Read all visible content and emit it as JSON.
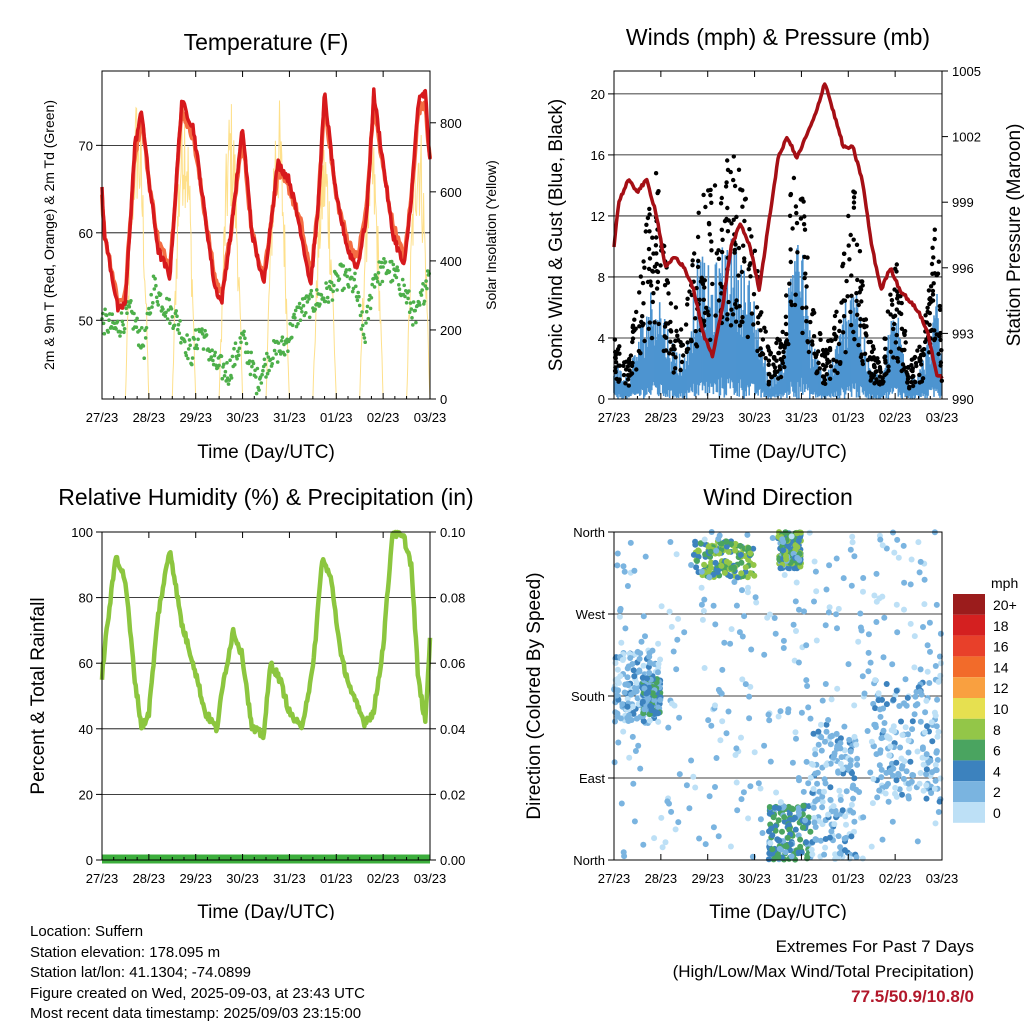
{
  "time_ticks": [
    "27/23",
    "28/23",
    "29/23",
    "30/23",
    "31/23",
    "01/23",
    "02/23",
    "03/23"
  ],
  "xlabel": "Time (Day/UTC)",
  "colors": {
    "t2m": "#d7191c",
    "t9m": "#f46d43",
    "td": "#4daf4a",
    "solar": "#fee08b",
    "wind": "#4d94d0",
    "gust": "#000000",
    "pressure": "#a50f15",
    "rh": "#8cc63f",
    "precip": "#3cae3c"
  },
  "chart_data": [
    {
      "type": "line",
      "title": "Temperature (F)",
      "xlabel": "Time (Day/UTC)",
      "ylabel": "2m & 9m T (Red, Orange) & 2m Td (Green)",
      "ylabel_right": "Solar Insolation (Yellow)",
      "ylim": [
        41,
        78.5
      ],
      "yticks": [
        50,
        60,
        70
      ],
      "ylim_right": [
        0,
        950
      ],
      "yticks_right": [
        0,
        200,
        400,
        600,
        800
      ],
      "x_range_days": [
        0,
        7
      ],
      "grid": "horizontal",
      "series": [
        {
          "name": "2m T",
          "x": [
            0,
            0.05,
            0.35,
            0.5,
            0.7,
            0.85,
            1.0,
            1.2,
            1.45,
            1.7,
            1.95,
            2.2,
            2.4,
            2.55,
            2.75,
            3.0,
            3.2,
            3.45,
            3.6,
            3.75,
            4.0,
            4.25,
            4.45,
            4.6,
            4.75,
            5.0,
            5.25,
            5.45,
            5.65,
            5.8,
            5.95,
            6.2,
            6.45,
            6.6,
            6.75,
            6.9,
            7.0
          ],
          "y": [
            65,
            60,
            51,
            52,
            70,
            74,
            66,
            58,
            55,
            75,
            72,
            62,
            54,
            52,
            60,
            72,
            60,
            54,
            61,
            68,
            66,
            60,
            54,
            62,
            76,
            64,
            58,
            56,
            62,
            76,
            70,
            60,
            56,
            64,
            75,
            76,
            68
          ]
        },
        {
          "name": "9m T",
          "x": [
            0,
            0.05,
            0.35,
            0.5,
            0.7,
            0.85,
            1.0,
            1.2,
            1.45,
            1.7,
            1.95,
            2.2,
            2.4,
            2.55,
            2.75,
            3.0,
            3.2,
            3.45,
            3.6,
            3.75,
            4.0,
            4.25,
            4.45,
            4.6,
            4.75,
            5.0,
            5.25,
            5.45,
            5.65,
            5.8,
            5.95,
            6.2,
            6.45,
            6.6,
            6.75,
            6.9,
            7.0
          ],
          "y": [
            64,
            60,
            52,
            53,
            69,
            73,
            66,
            59,
            56,
            74,
            71,
            62,
            55,
            53,
            60,
            71,
            60,
            55,
            61,
            67,
            65,
            61,
            55,
            62,
            75,
            64,
            59,
            57,
            63,
            75,
            69,
            61,
            57,
            64,
            74,
            75,
            68
          ]
        },
        {
          "name": "2m Td",
          "x": [
            0,
            0.3,
            0.6,
            0.9,
            1.1,
            1.3,
            1.6,
            1.9,
            2.1,
            2.4,
            2.7,
            3.0,
            3.3,
            3.6,
            3.9,
            4.2,
            4.5,
            4.8,
            5.1,
            5.4,
            5.6,
            5.8,
            6.1,
            6.4,
            6.7,
            6.9,
            7.0
          ],
          "y": [
            50,
            49,
            51,
            47,
            54,
            52,
            50,
            46,
            49,
            45,
            44,
            48,
            43,
            46,
            47,
            51,
            52,
            53,
            55,
            54,
            48,
            55,
            56,
            54,
            50,
            54,
            57
          ]
        },
        {
          "name": "Solar",
          "axis": "right",
          "x": [
            0,
            0.5,
            0.75,
            1.0,
            1.5,
            1.75,
            2.0,
            2.5,
            2.75,
            3.0,
            3.5,
            3.75,
            4.0,
            4.5,
            4.75,
            5.0,
            5.5,
            5.75,
            6.0,
            6.5,
            6.75,
            7.0
          ],
          "y": [
            0,
            0,
            900,
            0,
            0,
            930,
            0,
            0,
            880,
            0,
            0,
            900,
            0,
            0,
            780,
            0,
            0,
            800,
            0,
            0,
            860,
            0
          ]
        }
      ]
    },
    {
      "type": "line",
      "title": "Winds (mph) & Pressure (mb)",
      "xlabel": "Time (Day/UTC)",
      "ylabel": "Sonic Wind & Gust (Blue, Black)",
      "ylabel_right": "Station Pressure (Maroon)",
      "ylim": [
        0,
        21.5
      ],
      "yticks": [
        0,
        4,
        8,
        12,
        16,
        20
      ],
      "ylim_right": [
        990,
        1005
      ],
      "yticks_right": [
        990,
        993,
        996,
        999,
        1002,
        1005
      ],
      "x_range_days": [
        0,
        7
      ],
      "grid": "horizontal",
      "series": [
        {
          "name": "Sonic Wind",
          "x": [
            0,
            0.3,
            0.6,
            0.9,
            1.2,
            1.5,
            1.8,
            2.1,
            2.4,
            2.7,
            3.0,
            3.3,
            3.6,
            3.9,
            4.2,
            4.5,
            4.8,
            5.1,
            5.4,
            5.7,
            6.0,
            6.3,
            6.6,
            6.9,
            7.0
          ],
          "y": [
            2,
            1,
            4,
            6,
            3,
            2,
            7,
            6,
            8,
            7,
            5,
            1,
            2,
            10,
            3,
            1,
            3,
            7,
            2,
            1,
            5,
            1,
            2,
            5,
            2
          ]
        },
        {
          "name": "Gust",
          "x": [
            0,
            0.3,
            0.6,
            0.9,
            1.2,
            1.5,
            1.8,
            2.1,
            2.4,
            2.7,
            3.0,
            3.3,
            3.6,
            3.9,
            4.2,
            4.5,
            4.8,
            5.1,
            5.4,
            5.7,
            6.0,
            6.3,
            6.6,
            6.9,
            7.0
          ],
          "y": [
            4,
            2,
            9,
            14,
            6,
            5,
            12,
            13,
            15,
            14,
            9,
            3,
            4,
            19,
            6,
            3,
            6,
            14,
            4,
            2,
            9,
            2,
            4,
            12,
            3
          ]
        },
        {
          "name": "Pressure",
          "axis": "right",
          "x": [
            0,
            0.1,
            0.3,
            0.5,
            0.7,
            0.9,
            1.1,
            1.3,
            1.5,
            1.7,
            1.9,
            2.1,
            2.3,
            2.5,
            2.7,
            2.9,
            3.1,
            3.3,
            3.5,
            3.7,
            3.9,
            4.1,
            4.3,
            4.5,
            4.7,
            4.9,
            5.1,
            5.3,
            5.5,
            5.7,
            5.9,
            6.1,
            6.3,
            6.5,
            6.7,
            6.9,
            7.0
          ],
          "y": [
            997,
            999,
            1000,
            999.5,
            1000,
            998.5,
            996,
            996.5,
            996,
            995,
            993,
            992,
            994,
            997,
            998,
            997,
            995,
            998,
            1001,
            1002,
            1001,
            1002,
            1003,
            1004.5,
            1003,
            1001.5,
            1001.5,
            1000,
            997,
            995,
            996,
            995,
            994.5,
            994,
            993,
            991,
            991
          ]
        }
      ]
    },
    {
      "type": "line",
      "title": "Relative Humidity (%) & Precipitation (in)",
      "xlabel": "Time (Day/UTC)",
      "ylabel": "Percent & Total Rainfall",
      "ylim": [
        0,
        100
      ],
      "yticks": [
        0,
        20,
        40,
        60,
        80,
        100
      ],
      "ylim_right": [
        0,
        0.1
      ],
      "yticks_right": [
        0.0,
        0.02,
        0.04,
        0.06,
        0.08,
        0.1
      ],
      "x_range_days": [
        0,
        7
      ],
      "grid": "horizontal",
      "series": [
        {
          "name": "RH",
          "x": [
            0,
            0.1,
            0.3,
            0.5,
            0.7,
            0.85,
            1.0,
            1.2,
            1.45,
            1.7,
            1.95,
            2.2,
            2.45,
            2.6,
            2.8,
            3.0,
            3.2,
            3.45,
            3.6,
            3.8,
            4.0,
            4.25,
            4.5,
            4.7,
            4.9,
            5.1,
            5.35,
            5.6,
            5.8,
            6.0,
            6.2,
            6.45,
            6.6,
            6.75,
            6.9,
            7.0
          ],
          "y": [
            56,
            70,
            93,
            85,
            55,
            40,
            45,
            75,
            95,
            72,
            60,
            45,
            40,
            55,
            70,
            62,
            40,
            38,
            60,
            55,
            45,
            40,
            58,
            92,
            85,
            62,
            50,
            42,
            45,
            65,
            100,
            98,
            90,
            55,
            42,
            67
          ]
        },
        {
          "name": "Total Rainfall",
          "axis": "right",
          "x": [
            0,
            7
          ],
          "y": [
            0,
            0
          ]
        }
      ]
    },
    {
      "type": "scatter",
      "title": "Wind Direction",
      "xlabel": "Time (Day/UTC)",
      "ylabel": "Direction (Colored By Speed)",
      "yticks_labels": [
        "North",
        "East",
        "South",
        "West",
        "North"
      ],
      "ylim": [
        0,
        360
      ],
      "x_range_days": [
        0,
        7
      ],
      "grid": "horizontal",
      "legend_title": "mph",
      "legend_labels": [
        "20+",
        "18",
        "16",
        "14",
        "12",
        "10",
        "8",
        "6",
        "4",
        "2",
        "0"
      ],
      "legend_colors": [
        "#9b1c1c",
        "#d42020",
        "#e8402a",
        "#f26b2a",
        "#f9a040",
        "#e6e050",
        "#93c648",
        "#4aa460",
        "#3c82be",
        "#7ab4e0",
        "#bde0f6"
      ],
      "legend_placement": "right",
      "clusters": [
        {
          "x": [
            0.0,
            1.0
          ],
          "dir": [
            150,
            230
          ],
          "speed": [
            0,
            4
          ]
        },
        {
          "x": [
            0.6,
            1.0
          ],
          "dir": [
            160,
            200
          ],
          "speed": [
            2,
            6
          ]
        },
        {
          "x": [
            1.7,
            3.0
          ],
          "dir": [
            310,
            350
          ],
          "speed": [
            4,
            9
          ]
        },
        {
          "x": [
            3.5,
            4.0
          ],
          "dir": [
            320,
            360
          ],
          "speed": [
            2,
            9
          ]
        },
        {
          "x": [
            3.3,
            4.2
          ],
          "dir": [
            0,
            60
          ],
          "speed": [
            2,
            7
          ]
        },
        {
          "x": [
            4.2,
            5.2
          ],
          "dir": [
            0,
            150
          ],
          "speed": [
            0,
            4
          ]
        },
        {
          "x": [
            5.5,
            7.0
          ],
          "dir": [
            60,
            200
          ],
          "speed": [
            0,
            4
          ]
        },
        {
          "x": [
            0.0,
            7.0
          ],
          "dir": [
            0,
            360
          ],
          "speed": [
            0,
            3
          ]
        }
      ]
    }
  ],
  "meta": {
    "location": "Location: Suffern",
    "elevation": "Station elevation: 178.095 m",
    "latlon": "Station lat/lon: 41.1304; -74.0899",
    "created": "Figure created on Wed, 2025-09-03, at 23:43 UTC",
    "recent": "Most recent data timestamp: 2025/09/03 23:15:00"
  },
  "extremes": {
    "title": "Extremes For Past 7 Days",
    "subtitle": "(High/Low/Max Wind/Total Precipitation)",
    "values": "77.5/50.9/10.8/0"
  }
}
